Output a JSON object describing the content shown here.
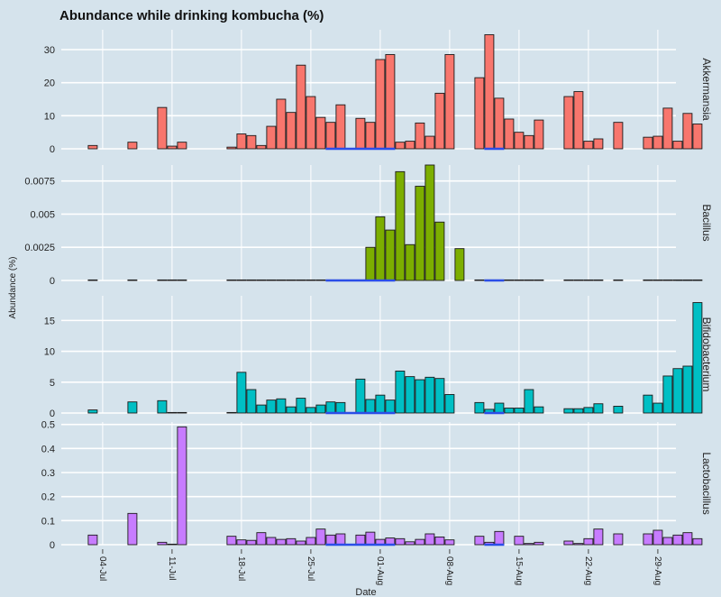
{
  "chart_data": {
    "type": "bar",
    "title": "Abundance while drinking kombucha (%)",
    "xlabel": "Date",
    "ylabel": "Abundance (%)",
    "x_ticks": [
      {
        "day": 4,
        "label": "04-Jul"
      },
      {
        "day": 11,
        "label": "11-Jul"
      },
      {
        "day": 18,
        "label": "18-Jul"
      },
      {
        "day": 25,
        "label": "25-Jul"
      },
      {
        "day": 32,
        "label": "01-Aug"
      },
      {
        "day": 39,
        "label": "08-Aug"
      },
      {
        "day": 46,
        "label": "15-Aug"
      },
      {
        "day": 53,
        "label": "22-Aug"
      },
      {
        "day": 60,
        "label": "29-Aug"
      }
    ],
    "days": [
      3,
      7,
      10,
      11,
      12,
      17,
      18,
      19,
      20,
      21,
      22,
      23,
      24,
      25,
      26,
      27,
      28,
      29,
      30,
      31,
      32,
      33,
      34,
      35,
      36,
      37,
      38,
      39,
      40,
      42,
      43,
      44,
      45,
      46,
      47,
      48,
      51,
      52,
      53,
      54,
      56,
      59,
      60,
      61,
      62,
      63,
      64
    ],
    "kombucha_periods": [
      [
        26.5,
        33.5
      ],
      [
        42.5,
        44.5
      ]
    ],
    "grid": true,
    "panels": [
      {
        "name": "Akkermansia",
        "color": "#f8766d",
        "ticks": [
          "0",
          "10",
          "20",
          "30"
        ],
        "tick_values": [
          0,
          10,
          20,
          30
        ],
        "ylim": [
          0,
          36
        ],
        "values": [
          1,
          2,
          12.5,
          0.8,
          2,
          0.5,
          4.5,
          4,
          1,
          6.8,
          15,
          11,
          25.3,
          15.8,
          9.5,
          8,
          13.3,
          null,
          9.2,
          8,
          27,
          28.5,
          2,
          2.3,
          7.8,
          3.8,
          16.8,
          28.5,
          null,
          21.5,
          34.5,
          15.3,
          9,
          5,
          4,
          8.7,
          15.8,
          17.3,
          2.3,
          3,
          8,
          3.5,
          3.8,
          12.3,
          2.3,
          10.7,
          7.5
        ]
      },
      {
        "name": "Bacillus",
        "color": "#7cae00",
        "ticks": [
          "0",
          "0.0025",
          "0.005",
          "0.0075"
        ],
        "tick_values": [
          0,
          0.0025,
          0.005,
          0.0075
        ],
        "ylim": [
          0,
          0.0087
        ],
        "values": [
          0,
          0,
          0,
          0,
          0,
          0,
          0,
          0,
          0,
          0,
          0,
          0,
          0,
          0,
          0,
          0,
          0,
          0,
          0,
          0.0025,
          0.0048,
          0.0038,
          0.0082,
          0.0027,
          0.0071,
          0.0087,
          0.0044,
          null,
          0.0024,
          0,
          0,
          0,
          0,
          0,
          0,
          0,
          0,
          0,
          0,
          0,
          0,
          0,
          0,
          0,
          0,
          0,
          0
        ]
      },
      {
        "name": "Bifidobacterium",
        "color": "#00bfc4",
        "ticks": [
          "0",
          "5",
          "10",
          "15"
        ],
        "tick_values": [
          0,
          5,
          10,
          15
        ],
        "ylim": [
          0,
          19
        ],
        "values": [
          0.5,
          1.8,
          2,
          0,
          0,
          0,
          6.6,
          3.8,
          1.3,
          2.1,
          2.3,
          1,
          2.4,
          0.9,
          1.3,
          1.8,
          1.7,
          null,
          5.5,
          2.2,
          2.9,
          2.1,
          6.8,
          5.9,
          5.4,
          5.8,
          5.6,
          3,
          null,
          1.7,
          0.6,
          1.6,
          0.8,
          0.8,
          3.8,
          1,
          0.7,
          0.7,
          0.9,
          1.5,
          1.1,
          2.9,
          1.6,
          6,
          7.2,
          7.6,
          17.9
        ]
      },
      {
        "name": "Lactobacillus",
        "color": "#c77cff",
        "ticks": [
          "0",
          "0.1",
          "0.2",
          "0.3",
          "0.4",
          "0.5"
        ],
        "tick_values": [
          0,
          0.1,
          0.2,
          0.3,
          0.4,
          0.5
        ],
        "ylim": [
          0,
          0.51
        ],
        "values": [
          0.04,
          0.13,
          0.01,
          0,
          0.49,
          0.035,
          0.02,
          0.018,
          0.05,
          0.03,
          0.022,
          0.025,
          0.015,
          0.03,
          0.065,
          0.04,
          0.045,
          null,
          0.04,
          0.052,
          0.022,
          0.028,
          0.025,
          0.012,
          0.022,
          0.045,
          0.032,
          0.02,
          null,
          0.035,
          0.01,
          0.055,
          null,
          0.035,
          0.005,
          0.01,
          0.015,
          0.005,
          0.025,
          0.065,
          0.045,
          0.045,
          0.06,
          0.03,
          0.04,
          0.05,
          0.025
        ]
      }
    ]
  }
}
